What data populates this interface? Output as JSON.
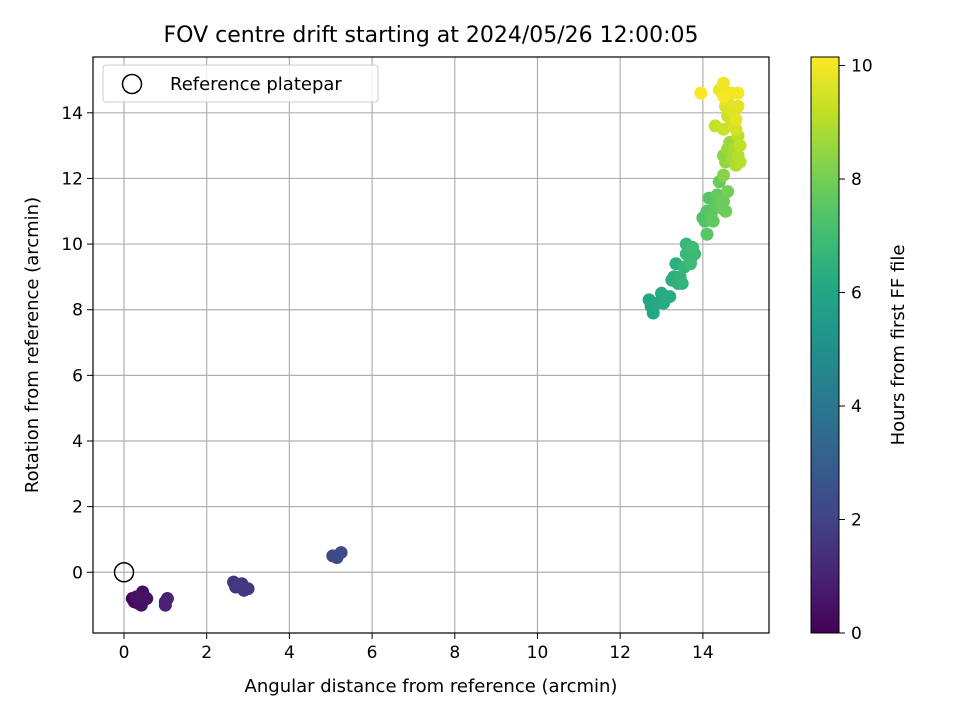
{
  "chart_data": {
    "type": "scatter",
    "title": "FOV centre drift starting at 2024/05/26 12:00:05",
    "xlabel": "Angular distance from reference (arcmin)",
    "ylabel": "Rotation from reference (arcmin)",
    "xlim": [
      -0.75,
      15.6
    ],
    "ylim": [
      -1.85,
      15.7
    ],
    "xticks": [
      0,
      2,
      4,
      6,
      8,
      10,
      12,
      14
    ],
    "yticks": [
      0,
      2,
      4,
      6,
      8,
      10,
      12,
      14
    ],
    "grid": true,
    "legend": {
      "position": "top-left",
      "entries": [
        "Reference platepar"
      ]
    },
    "reference_point": {
      "x": 0,
      "y": 0
    },
    "colorbar": {
      "label": "Hours from first FF file",
      "range": [
        0,
        10.15
      ],
      "ticks": [
        0,
        2,
        4,
        6,
        8,
        10
      ],
      "colormap": "viridis"
    },
    "points": [
      {
        "x": 0.2,
        "y": -0.8,
        "c": 0.1
      },
      {
        "x": 0.25,
        "y": -0.9,
        "c": 0.15
      },
      {
        "x": 0.3,
        "y": -0.85,
        "c": 0.2
      },
      {
        "x": 0.35,
        "y": -0.95,
        "c": 0.25
      },
      {
        "x": 0.4,
        "y": -0.7,
        "c": 0.3
      },
      {
        "x": 0.45,
        "y": -0.6,
        "c": 0.35
      },
      {
        "x": 0.5,
        "y": -0.75,
        "c": 0.4
      },
      {
        "x": 0.42,
        "y": -1.0,
        "c": 0.45
      },
      {
        "x": 0.55,
        "y": -0.8,
        "c": 0.5
      },
      {
        "x": 0.3,
        "y": -0.75,
        "c": 0.55
      },
      {
        "x": 1.0,
        "y": -0.9,
        "c": 0.9
      },
      {
        "x": 1.05,
        "y": -0.8,
        "c": 0.95
      },
      {
        "x": 1.0,
        "y": -1.0,
        "c": 1.0
      },
      {
        "x": 2.65,
        "y": -0.3,
        "c": 1.45
      },
      {
        "x": 2.7,
        "y": -0.45,
        "c": 1.5
      },
      {
        "x": 2.85,
        "y": -0.35,
        "c": 1.55
      },
      {
        "x": 2.9,
        "y": -0.55,
        "c": 1.6
      },
      {
        "x": 3.0,
        "y": -0.5,
        "c": 1.65
      },
      {
        "x": 2.75,
        "y": -0.4,
        "c": 1.7
      },
      {
        "x": 5.05,
        "y": 0.5,
        "c": 2.2
      },
      {
        "x": 5.15,
        "y": 0.45,
        "c": 2.25
      },
      {
        "x": 5.25,
        "y": 0.6,
        "c": 2.3
      },
      {
        "x": 12.7,
        "y": 8.3,
        "c": 6.0
      },
      {
        "x": 12.75,
        "y": 8.1,
        "c": 6.05
      },
      {
        "x": 12.8,
        "y": 7.9,
        "c": 6.1
      },
      {
        "x": 12.9,
        "y": 8.2,
        "c": 6.15
      },
      {
        "x": 13.0,
        "y": 8.5,
        "c": 6.2
      },
      {
        "x": 13.05,
        "y": 8.2,
        "c": 6.25
      },
      {
        "x": 13.2,
        "y": 8.4,
        "c": 6.3
      },
      {
        "x": 13.25,
        "y": 8.9,
        "c": 6.35
      },
      {
        "x": 13.3,
        "y": 9.0,
        "c": 6.4
      },
      {
        "x": 13.35,
        "y": 9.4,
        "c": 6.45
      },
      {
        "x": 13.4,
        "y": 8.8,
        "c": 6.5
      },
      {
        "x": 13.45,
        "y": 9.0,
        "c": 6.55
      },
      {
        "x": 13.5,
        "y": 8.8,
        "c": 6.6
      },
      {
        "x": 13.55,
        "y": 9.3,
        "c": 6.65
      },
      {
        "x": 13.6,
        "y": 9.7,
        "c": 6.7
      },
      {
        "x": 13.6,
        "y": 10.0,
        "c": 6.75
      },
      {
        "x": 13.7,
        "y": 9.5,
        "c": 6.8
      },
      {
        "x": 13.8,
        "y": 9.7,
        "c": 6.85
      },
      {
        "x": 13.7,
        "y": 9.4,
        "c": 6.9
      },
      {
        "x": 13.75,
        "y": 9.9,
        "c": 6.95
      },
      {
        "x": 14.0,
        "y": 10.8,
        "c": 7.3
      },
      {
        "x": 14.05,
        "y": 10.7,
        "c": 7.35
      },
      {
        "x": 14.1,
        "y": 11.0,
        "c": 7.4
      },
      {
        "x": 14.15,
        "y": 11.4,
        "c": 7.45
      },
      {
        "x": 14.1,
        "y": 10.3,
        "c": 7.5
      },
      {
        "x": 14.2,
        "y": 10.9,
        "c": 7.55
      },
      {
        "x": 14.3,
        "y": 11.2,
        "c": 7.6
      },
      {
        "x": 14.25,
        "y": 10.7,
        "c": 7.65
      },
      {
        "x": 14.35,
        "y": 11.5,
        "c": 7.7
      },
      {
        "x": 14.4,
        "y": 11.9,
        "c": 7.75
      },
      {
        "x": 14.45,
        "y": 11.1,
        "c": 7.8
      },
      {
        "x": 14.5,
        "y": 11.3,
        "c": 7.85
      },
      {
        "x": 14.55,
        "y": 11.0,
        "c": 7.9
      },
      {
        "x": 14.6,
        "y": 11.6,
        "c": 7.95
      },
      {
        "x": 14.5,
        "y": 12.1,
        "c": 8.3
      },
      {
        "x": 14.5,
        "y": 12.7,
        "c": 8.4
      },
      {
        "x": 14.55,
        "y": 12.5,
        "c": 8.5
      },
      {
        "x": 14.6,
        "y": 12.9,
        "c": 8.6
      },
      {
        "x": 14.65,
        "y": 13.1,
        "c": 8.65
      },
      {
        "x": 14.7,
        "y": 12.6,
        "c": 8.7
      },
      {
        "x": 14.75,
        "y": 12.9,
        "c": 8.8
      },
      {
        "x": 14.8,
        "y": 12.4,
        "c": 8.9
      },
      {
        "x": 14.85,
        "y": 12.7,
        "c": 9.0
      },
      {
        "x": 14.9,
        "y": 12.5,
        "c": 9.05
      },
      {
        "x": 14.85,
        "y": 13.3,
        "c": 9.1
      },
      {
        "x": 14.9,
        "y": 13.0,
        "c": 9.2
      },
      {
        "x": 14.3,
        "y": 13.6,
        "c": 9.3
      },
      {
        "x": 14.5,
        "y": 13.5,
        "c": 9.35
      },
      {
        "x": 14.6,
        "y": 13.9,
        "c": 9.4
      },
      {
        "x": 14.7,
        "y": 13.7,
        "c": 9.45
      },
      {
        "x": 14.8,
        "y": 13.5,
        "c": 9.5
      },
      {
        "x": 14.75,
        "y": 14.0,
        "c": 9.55
      },
      {
        "x": 14.55,
        "y": 14.2,
        "c": 9.6
      },
      {
        "x": 14.7,
        "y": 14.1,
        "c": 9.65
      },
      {
        "x": 14.85,
        "y": 14.2,
        "c": 9.7
      },
      {
        "x": 14.8,
        "y": 13.8,
        "c": 9.75
      },
      {
        "x": 14.6,
        "y": 14.4,
        "c": 9.8
      },
      {
        "x": 14.4,
        "y": 14.7,
        "c": 9.85
      },
      {
        "x": 14.5,
        "y": 14.9,
        "c": 9.9
      },
      {
        "x": 14.6,
        "y": 14.6,
        "c": 9.95
      },
      {
        "x": 14.7,
        "y": 14.6,
        "c": 10.0
      },
      {
        "x": 14.85,
        "y": 14.6,
        "c": 10.05
      },
      {
        "x": 14.5,
        "y": 14.5,
        "c": 10.08
      },
      {
        "x": 13.95,
        "y": 14.6,
        "c": 10.12
      }
    ]
  }
}
